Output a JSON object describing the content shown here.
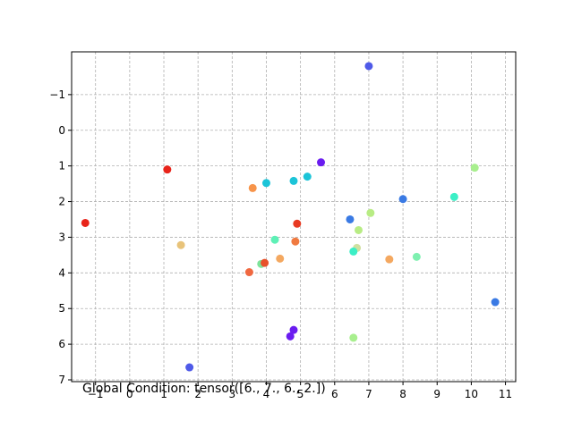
{
  "chart_data": {
    "type": "scatter",
    "title": "",
    "xlabel": "",
    "ylabel": "",
    "annotation": "Global Condition: tensor([6., 7., 6., 2.])",
    "xlim": [
      -1.7,
      11.3
    ],
    "ylim": [
      7.05,
      -2.2
    ],
    "y_inverted": true,
    "grid": true,
    "x_ticks": [
      -1,
      0,
      1,
      2,
      3,
      4,
      5,
      6,
      7,
      8,
      9,
      10,
      11
    ],
    "y_ticks": [
      -1,
      0,
      1,
      2,
      3,
      4,
      5,
      6,
      7
    ],
    "points": [
      {
        "x": 7.0,
        "y": -1.8,
        "color": "#4f5ae8"
      },
      {
        "x": 5.6,
        "y": 0.9,
        "color": "#6a1cf0"
      },
      {
        "x": 1.1,
        "y": 1.1,
        "color": "#e8241a"
      },
      {
        "x": 10.1,
        "y": 1.05,
        "color": "#a8ef8e"
      },
      {
        "x": 5.2,
        "y": 1.3,
        "color": "#1cc4d8"
      },
      {
        "x": 4.0,
        "y": 1.48,
        "color": "#1cc4d8"
      },
      {
        "x": 4.8,
        "y": 1.42,
        "color": "#1cc4d8"
      },
      {
        "x": 3.6,
        "y": 1.62,
        "color": "#f7944a"
      },
      {
        "x": 9.5,
        "y": 1.87,
        "color": "#3cefc6"
      },
      {
        "x": 8.0,
        "y": 1.93,
        "color": "#3a7ae4"
      },
      {
        "x": 7.05,
        "y": 2.32,
        "color": "#b8ec84"
      },
      {
        "x": -1.3,
        "y": 2.6,
        "color": "#e8241a"
      },
      {
        "x": 6.45,
        "y": 2.5,
        "color": "#3a7ae4"
      },
      {
        "x": 4.9,
        "y": 2.62,
        "color": "#e83a22"
      },
      {
        "x": 6.7,
        "y": 2.8,
        "color": "#b8ec84"
      },
      {
        "x": 4.25,
        "y": 3.07,
        "color": "#5ef0b6"
      },
      {
        "x": 4.85,
        "y": 3.12,
        "color": "#f07a40"
      },
      {
        "x": 1.5,
        "y": 3.22,
        "color": "#e8c37a"
      },
      {
        "x": 6.65,
        "y": 3.3,
        "color": "#d0e0a0"
      },
      {
        "x": 6.55,
        "y": 3.4,
        "color": "#3cefc6"
      },
      {
        "x": 7.6,
        "y": 3.62,
        "color": "#f4a860"
      },
      {
        "x": 8.4,
        "y": 3.55,
        "color": "#7ef0b0"
      },
      {
        "x": 4.4,
        "y": 3.6,
        "color": "#f4a860"
      },
      {
        "x": 3.85,
        "y": 3.75,
        "color": "#7ee39a"
      },
      {
        "x": 3.95,
        "y": 3.72,
        "color": "#e8502a"
      },
      {
        "x": 3.5,
        "y": 3.98,
        "color": "#f06840"
      },
      {
        "x": 10.7,
        "y": 4.82,
        "color": "#3a7ae4"
      },
      {
        "x": 4.8,
        "y": 5.6,
        "color": "#6a1cf0"
      },
      {
        "x": 4.7,
        "y": 5.78,
        "color": "#6a1cf0"
      },
      {
        "x": 6.55,
        "y": 5.82,
        "color": "#a8ef8e"
      },
      {
        "x": 1.75,
        "y": 6.65,
        "color": "#4f5ae8"
      }
    ]
  }
}
